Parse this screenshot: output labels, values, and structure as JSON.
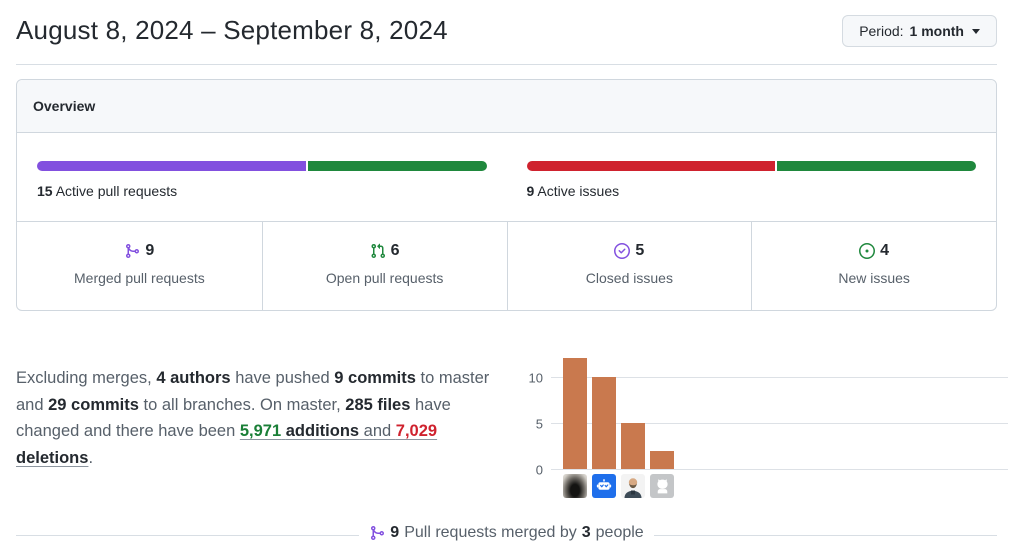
{
  "header": {
    "date_range": "August 8, 2024 – September 8, 2024",
    "period_label": "Period:",
    "period_value": "1 month"
  },
  "overview": {
    "title": "Overview",
    "pull_requests_meter": {
      "count": "15",
      "label": "Active pull requests",
      "merged_pct": 60,
      "open_pct": 40,
      "merged_color": "#8250df",
      "open_color": "#1f883d"
    },
    "issues_meter": {
      "count": "9",
      "label": "Active issues",
      "closed_pct": 55.6,
      "new_pct": 44.4,
      "closed_color": "#cf222e",
      "new_color": "#1f883d"
    },
    "stats": [
      {
        "icon": "git-merge-icon",
        "icon_color": "#8250df",
        "count": "9",
        "label": "Merged pull requests"
      },
      {
        "icon": "git-pull-request-icon",
        "icon_color": "#1f883d",
        "count": "6",
        "label": "Open pull requests"
      },
      {
        "icon": "issue-closed-icon",
        "icon_color": "#8250df",
        "count": "5",
        "label": "Closed issues"
      },
      {
        "icon": "issue-opened-icon",
        "icon_color": "#1f883d",
        "count": "4",
        "label": "New issues"
      }
    ]
  },
  "summary": {
    "t1": "Excluding merges, ",
    "b1": "4 authors",
    "t2": " have pushed ",
    "b2": "9 commits",
    "t3": " to master and ",
    "b3": "29 commits",
    "t4": " to all branches. On master, ",
    "b4": "285 files",
    "t5": " have changed and there have been ",
    "additions_value": "5,971",
    "additions_word": "additions",
    "and_word": " and ",
    "deletions_value": "7,029",
    "deletions_word": "deletions",
    "t6": "."
  },
  "chart_data": {
    "type": "bar",
    "categories": [
      "author-photo",
      "dependabot",
      "author-person",
      "ghost"
    ],
    "values": [
      12,
      10,
      5,
      2
    ],
    "yticks": [
      0,
      5,
      10
    ],
    "ylim": [
      0,
      12
    ],
    "bar_color": "#c9794e",
    "grid": true,
    "legend": false,
    "xlabel": "",
    "ylabel": ""
  },
  "footer": {
    "count1": "9",
    "t1": " Pull requests merged by ",
    "count2": "3",
    "t2": " people"
  }
}
